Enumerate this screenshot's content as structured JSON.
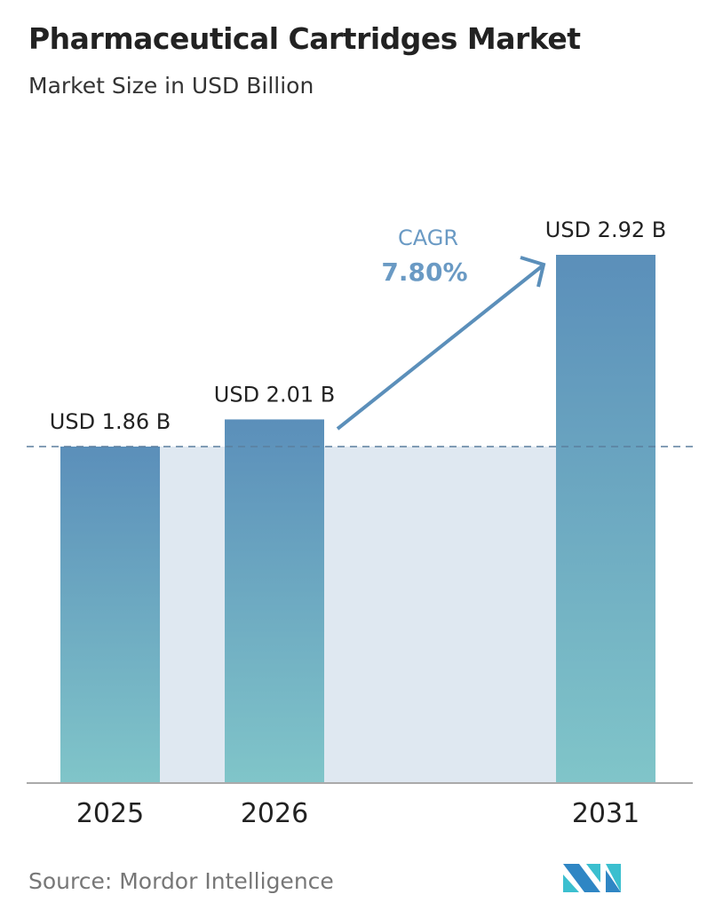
{
  "chart_data": {
    "type": "bar",
    "title": "Pharmaceutical Cartridges Market",
    "subtitle": "Market Size in USD Billion",
    "categories": [
      "2025",
      "2026",
      "2031"
    ],
    "values": [
      1.86,
      2.01,
      2.92
    ],
    "data_labels": [
      "USD 1.86 B",
      "USD 2.01 B",
      "USD 2.92 B"
    ],
    "ylim": [
      0,
      3.0
    ],
    "grid": false,
    "annotation": {
      "label": "CAGR",
      "value": "7.80%"
    },
    "colors": {
      "bar_top": "#5b8fba",
      "bar_bottom": "#80c5c9",
      "shade": "#dfe8f1",
      "arrow": "#5b8fba",
      "cagr_text": "#6a9ac4"
    }
  },
  "source": "Source:  Mordor Intelligence",
  "logo": "Mordor Intelligence"
}
